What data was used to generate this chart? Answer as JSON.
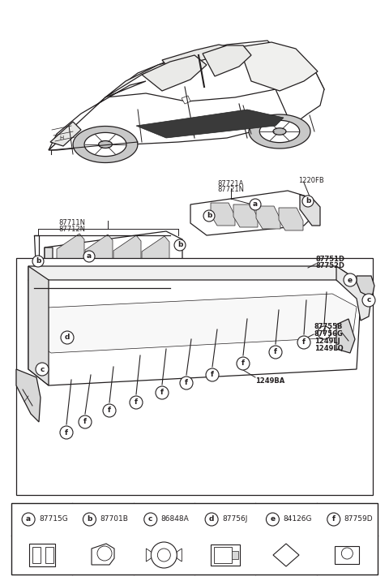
{
  "bg_color": "#ffffff",
  "line_color": "#231f20",
  "figsize": [
    4.8,
    7.16
  ],
  "dpi": 100,
  "part_labels": [
    {
      "id": "a",
      "part": "87715G"
    },
    {
      "id": "b",
      "part": "87701B"
    },
    {
      "id": "c",
      "part": "86848A"
    },
    {
      "id": "d",
      "part": "87756J"
    },
    {
      "id": "e",
      "part": "84126G"
    },
    {
      "id": "f",
      "part": "87759D"
    }
  ],
  "callout_texts": {
    "87721A_N": "87721A\n87721N",
    "1220FB": "1220FB",
    "87711N_N": "87711N\n87712N",
    "87751D_D": "87751D\n87752D",
    "87755B_etc": "87755B\n87756G\n1249LJ\n1249LQ",
    "1249BA": "1249BA"
  }
}
